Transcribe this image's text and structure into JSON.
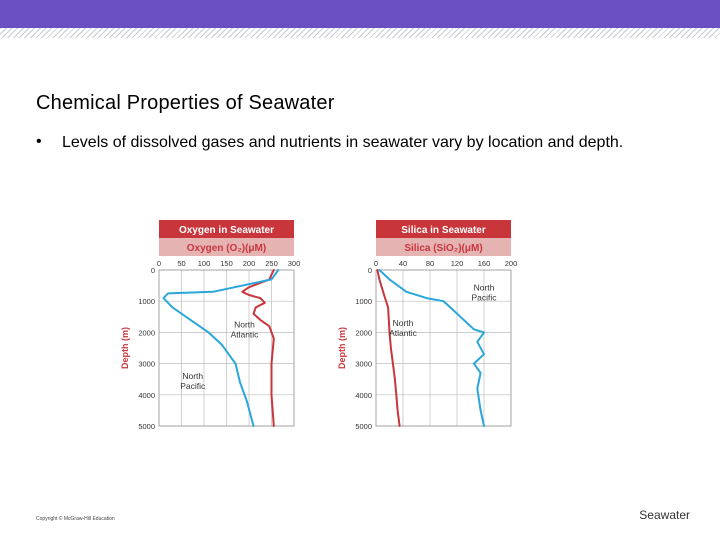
{
  "theme": {
    "accent_bar": "#6a4fc1",
    "panel_header": "#c8363c",
    "panel_subheader": "#e6b3b3",
    "grid": "#bdbdbd",
    "series_atlantic": "#c8363c",
    "series_pacific": "#2aa7d8",
    "axis_text": "#c8363c",
    "tick_text": "#333333"
  },
  "slide": {
    "title": "Chemical Properties of Seawater",
    "bullet_symbol": "•",
    "bullet_text": "Levels of dissolved gases and nutrients in seawater vary by location and depth.",
    "copyright": "Copyright © McGraw-Hill Education",
    "footer": "Seawater"
  },
  "chart_data": [
    {
      "type": "line",
      "title": "Oxygen in Seawater",
      "xlabel": "Oxygen (O₂)(μM)",
      "ylabel": "Depth (m)",
      "xlim": [
        0,
        300
      ],
      "ylim": [
        0,
        5000
      ],
      "y_inverted": true,
      "xticks": [
        0,
        50,
        100,
        150,
        200,
        250,
        300
      ],
      "yticks": [
        0,
        1000,
        2000,
        3000,
        4000,
        5000
      ],
      "grid": true,
      "series": [
        {
          "name": "North Atlantic",
          "color": "#c8363c",
          "x": [
            255,
            245,
            200,
            185,
            200,
            225,
            235,
            215,
            210,
            225,
            245,
            255,
            250,
            250,
            255
          ],
          "y": [
            0,
            300,
            550,
            700,
            800,
            900,
            1050,
            1200,
            1400,
            1600,
            1800,
            2200,
            3000,
            4000,
            5000
          ]
        },
        {
          "name": "North Pacific",
          "color": "#2aa7d8",
          "x": [
            265,
            250,
            120,
            20,
            10,
            30,
            70,
            110,
            140,
            160,
            170,
            180,
            195,
            210
          ],
          "y": [
            0,
            300,
            700,
            750,
            900,
            1200,
            1600,
            2000,
            2400,
            2800,
            3000,
            3600,
            4200,
            5000
          ]
        }
      ]
    },
    {
      "type": "line",
      "title": "Silica in Seawater",
      "xlabel": "Silica (SiO₂)(μM)",
      "ylabel": "Depth (m)",
      "xlim": [
        0,
        200
      ],
      "ylim": [
        0,
        5000
      ],
      "y_inverted": true,
      "xticks": [
        0,
        40,
        80,
        120,
        160,
        200
      ],
      "yticks": [
        0,
        1000,
        2000,
        3000,
        4000,
        5000
      ],
      "grid": true,
      "series": [
        {
          "name": "North Atlantic",
          "color": "#c8363c",
          "x": [
            2,
            5,
            12,
            18,
            20,
            22,
            25,
            28,
            30,
            32,
            35
          ],
          "y": [
            0,
            300,
            800,
            1200,
            2000,
            2500,
            3000,
            3500,
            4000,
            4500,
            5000
          ]
        },
        {
          "name": "North Pacific",
          "color": "#2aa7d8",
          "x": [
            5,
            20,
            45,
            75,
            100,
            110,
            125,
            145,
            160,
            150,
            160,
            145,
            155,
            150,
            155,
            160
          ],
          "y": [
            0,
            300,
            700,
            900,
            1000,
            1200,
            1500,
            1900,
            2000,
            2300,
            2700,
            3000,
            3300,
            3800,
            4500,
            5000
          ]
        }
      ]
    }
  ]
}
